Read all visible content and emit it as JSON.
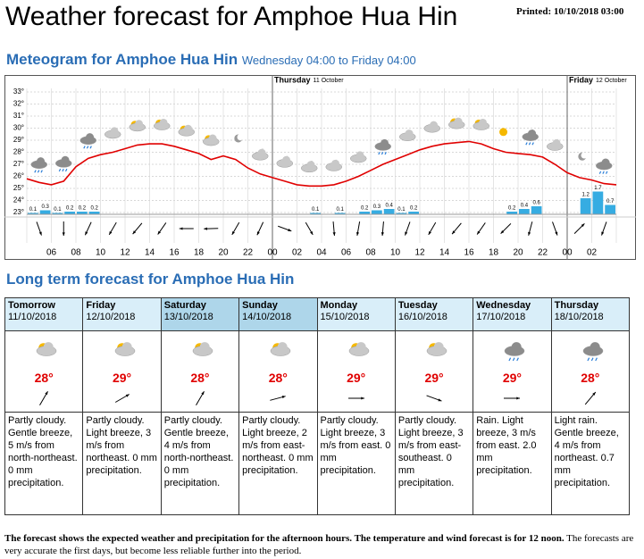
{
  "header": {
    "title": "Weather forecast for Amphoe Hua Hin",
    "printed": "Printed: 10/10/2018 03:00"
  },
  "meteogram": {
    "title": "Meteogram for Amphoe Hua Hin",
    "period": "Wednesday 04:00 to Friday 04:00",
    "ylim": [
      23,
      33
    ],
    "yticks": [
      {
        "value": 23,
        "label": "23°"
      },
      {
        "value": 24,
        "label": "24°"
      },
      {
        "value": 25,
        "label": "25°"
      },
      {
        "value": 26,
        "label": "26°"
      },
      {
        "value": 27,
        "label": "27°"
      },
      {
        "value": 28,
        "label": "28°"
      },
      {
        "value": 29,
        "label": "29°"
      },
      {
        "value": 30,
        "label": "30°"
      },
      {
        "value": 31,
        "label": "31°"
      },
      {
        "value": 32,
        "label": "32°"
      },
      {
        "value": 33,
        "label": "33°"
      }
    ],
    "time_labels": [
      "06",
      "08",
      "10",
      "12",
      "14",
      "16",
      "18",
      "20",
      "22",
      "00",
      "02",
      "04",
      "06",
      "08",
      "10",
      "12",
      "14",
      "16",
      "18",
      "20",
      "22",
      "00",
      "02"
    ],
    "days": [
      {
        "name": "Thursday",
        "date": "11 October"
      },
      {
        "name": "Friday",
        "date": "12 October"
      }
    ],
    "temperature_color": "#e00000",
    "precipitation_color": "#36ace2",
    "temperature": [
      25.8,
      25.5,
      25.3,
      25.6,
      26.8,
      27.5,
      27.8,
      28.0,
      28.3,
      28.6,
      28.7,
      28.7,
      28.5,
      28.2,
      27.9,
      27.4,
      27.7,
      27.4,
      26.7,
      26.2,
      25.9,
      25.6,
      25.3,
      25.2,
      25.2,
      25.3,
      25.6,
      26.0,
      26.5,
      27.0,
      27.4,
      27.8,
      28.2,
      28.5,
      28.7,
      28.8,
      28.9,
      28.7,
      28.3,
      28.0,
      27.9,
      27.8,
      27.6,
      27.0,
      26.3,
      25.9,
      25.7,
      25.4,
      25.3
    ],
    "precipitation": [
      0.1,
      0.3,
      0.1,
      0.2,
      0.2,
      0.2,
      null,
      null,
      null,
      null,
      null,
      null,
      null,
      null,
      null,
      null,
      null,
      null,
      null,
      null,
      null,
      null,
      null,
      0.1,
      null,
      0.1,
      null,
      0.2,
      0.3,
      0.4,
      0.1,
      0.2,
      null,
      null,
      null,
      null,
      null,
      null,
      null,
      0.2,
      0.4,
      0.6,
      null,
      null,
      null,
      1.2,
      1.7,
      0.7
    ]
  },
  "long_term": {
    "title": "Long term forecast for Amphoe Hua Hin",
    "days": [
      {
        "day": "Tomorrow",
        "date": "11/10/2018",
        "temp": "28°",
        "text": "Partly cloudy. Gentle breeze, 5 m/s from north-northeast. 0 mm precipitation."
      },
      {
        "day": "Friday",
        "date": "12/10/2018",
        "temp": "29°",
        "text": "Partly cloudy. Light breeze, 3 m/s from northeast. 0 mm precipitation."
      },
      {
        "day": "Saturday",
        "date": "13/10/2018",
        "temp": "28°",
        "text": "Partly cloudy. Gentle breeze, 4 m/s from north-northeast. 0 mm precipitation."
      },
      {
        "day": "Sunday",
        "date": "14/10/2018",
        "temp": "28°",
        "text": "Partly cloudy. Light breeze, 2 m/s from east-northeast. 0 mm precipitation."
      },
      {
        "day": "Monday",
        "date": "15/10/2018",
        "temp": "29°",
        "text": "Partly cloudy. Light breeze, 3 m/s from east. 0 mm precipitation."
      },
      {
        "day": "Tuesday",
        "date": "16/10/2018",
        "temp": "29°",
        "text": "Partly cloudy. Light breeze, 3 m/s from east-southeast. 0 mm precipitation."
      },
      {
        "day": "Wednesday",
        "date": "17/10/2018",
        "temp": "29°",
        "text": "Rain. Light breeze, 3 m/s from east. 2.0 mm precipitation."
      },
      {
        "day": "Thursday",
        "date": "18/10/2018",
        "temp": "28°",
        "text": "Light rain. Gentle breeze, 4 m/s from northeast. 0.7 mm precipitation."
      }
    ]
  },
  "footer": {
    "bold": "The forecast shows the expected weather and precipitation for the afternoon hours. The temperature and wind forecast is for 12 noon.",
    "text": "The forecasts are very accurate the first days, but become less reliable further into the period."
  }
}
